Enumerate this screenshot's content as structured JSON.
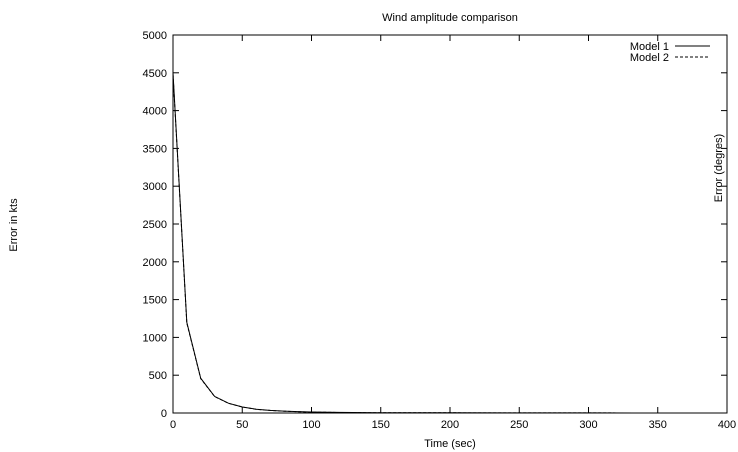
{
  "chart_data": {
    "type": "line",
    "title": "Wind amplitude comparison",
    "xlabel": "Time (sec)",
    "ylabel": "Error in kts",
    "y2label": "Error (degres)",
    "xlim": [
      0,
      400
    ],
    "ylim": [
      0,
      5000
    ],
    "xticks": [
      0,
      50,
      100,
      150,
      200,
      250,
      300,
      350,
      400
    ],
    "yticks": [
      0,
      500,
      1000,
      1500,
      2000,
      2500,
      3000,
      3500,
      4000,
      4500,
      5000
    ],
    "grid": false,
    "legend_position": "top-right",
    "series": [
      {
        "name": "Model 1",
        "style": "solid",
        "x": [
          0,
          10,
          20,
          30,
          40,
          50,
          60,
          70,
          80,
          90,
          100,
          120,
          140,
          160,
          200,
          250,
          300,
          350,
          400
        ],
        "y": [
          4500,
          1200,
          460,
          220,
          130,
          80,
          50,
          35,
          25,
          18,
          13,
          8,
          5,
          3,
          2,
          1,
          1,
          0,
          0
        ]
      },
      {
        "name": "Model 2",
        "style": "dashed",
        "x": [
          0,
          10,
          20,
          30,
          40,
          50,
          60,
          70,
          80,
          90,
          100,
          120,
          140,
          160,
          200,
          250,
          300,
          350,
          400
        ],
        "y": [
          4480,
          1190,
          455,
          218,
          128,
          79,
          49,
          34,
          24,
          17,
          12,
          7,
          4,
          3,
          2,
          1,
          1,
          0,
          0
        ]
      }
    ]
  }
}
